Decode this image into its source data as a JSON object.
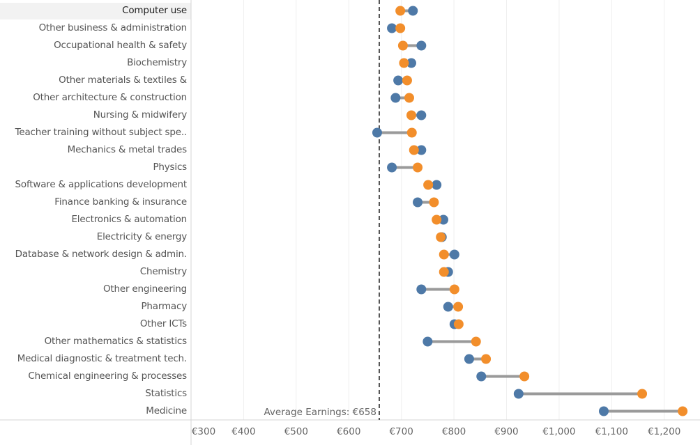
{
  "chart_data": {
    "type": "dumbbell",
    "title": "",
    "xlabel": "",
    "ylabel": "",
    "xlim": [
      300,
      1268
    ],
    "x_ticks": [
      300,
      400,
      500,
      600,
      700,
      800,
      900,
      1000,
      1100,
      1200
    ],
    "x_tick_labels": [
      "€300",
      "€400",
      "€500",
      "€600",
      "€700",
      "€800",
      "€900",
      "€1,000",
      "€1,100",
      "€1,200"
    ],
    "grid": true,
    "selected_category": "Computer use",
    "reference_line": {
      "value": 658,
      "label": "Average Earnings: €658",
      "style": "dashed"
    },
    "series_colors": {
      "blue": "#4e79a7",
      "orange": "#f28e2b",
      "connector": "#9a9a9a"
    },
    "categories": [
      "Computer use",
      "Other business & administration",
      "Occupational health & safety",
      "Biochemistry",
      "Other materials & textiles &",
      "Other architecture & construction",
      "Nursing & midwifery",
      "Teacher training without subject spe..",
      "Mechanics & metal trades",
      "Physics",
      "Software & applications development",
      "Finance banking & insurance",
      "Electronics & automation",
      "Electricity & energy",
      "Database & network design & admin.",
      "Chemistry",
      "Other engineering",
      "Pharmacy",
      "Other ICTs",
      "Other mathematics & statistics",
      "Medical diagnostic & treatment tech.",
      "Chemical engineering & processes",
      "Statistics",
      "Medicine"
    ],
    "series": [
      {
        "name": "blue",
        "color": "#4e79a7",
        "values": [
          722,
          682,
          738,
          719,
          694,
          689,
          738,
          654,
          738,
          682,
          767,
          731,
          780,
          777,
          801,
          789,
          738,
          789,
          801,
          750,
          829,
          852,
          923,
          1085
        ]
      },
      {
        "name": "orange",
        "color": "#f28e2b",
        "values": [
          698,
          698,
          703,
          705,
          711,
          715,
          719,
          720,
          724,
          731,
          751,
          762,
          767,
          775,
          781,
          781,
          801,
          808,
          809,
          842,
          861,
          934,
          1158,
          1235
        ]
      }
    ]
  }
}
